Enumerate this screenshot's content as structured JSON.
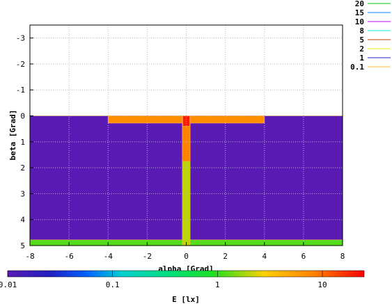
{
  "chart_data": {
    "type": "heatmap",
    "title": "",
    "xlabel": "alpha [Grad]",
    "ylabel": "beta [Grad]",
    "xlim": [
      -8,
      8
    ],
    "ylim": [
      -3.5,
      5
    ],
    "y_axis_inverted": true,
    "x_ticks": [
      "-8",
      "-6",
      "-4",
      "-2",
      "0",
      "2",
      "4",
      "6",
      "8"
    ],
    "y_ticks": [
      "-3",
      "-2",
      "-1",
      "0",
      "1",
      "2",
      "3",
      "4",
      "5"
    ],
    "grid": true,
    "legend_placement": "top-right outside",
    "contour_levels": [
      {
        "label": "20",
        "color": "#00c000"
      },
      {
        "label": "15",
        "color": "#0080ff"
      },
      {
        "label": "10",
        "color": "#c000ff"
      },
      {
        "label": "8",
        "color": "#00eeee"
      },
      {
        "label": "5",
        "color": "#c04000"
      },
      {
        "label": "2",
        "color": "#eeee00"
      },
      {
        "label": "1",
        "color": "#2020c0"
      },
      {
        "label": "0.1",
        "color": "#ffc020"
      }
    ],
    "colorbar": {
      "label": "E [lx]",
      "scale": "log",
      "range": [
        0.01,
        25
      ],
      "ticks": [
        "0.01",
        "0.1",
        "1",
        "10"
      ]
    },
    "regions": [
      {
        "name": "background",
        "x": [
          -8,
          8
        ],
        "y": [
          0,
          5
        ],
        "value": 0.01
      },
      {
        "name": "bottom-band",
        "x": [
          -8,
          8
        ],
        "y": [
          4.78,
          5
        ],
        "value": 1.2
      },
      {
        "name": "horizontal-bar",
        "x": [
          -4,
          4
        ],
        "y": [
          0,
          0.28
        ],
        "value": 7
      },
      {
        "name": "vertical-bar-upper",
        "x": [
          -0.2,
          0.2
        ],
        "y": [
          0,
          1.75
        ],
        "value": 8
      },
      {
        "name": "vertical-bar-lower",
        "x": [
          -0.2,
          0.2
        ],
        "y": [
          1.75,
          5
        ],
        "value": 2
      },
      {
        "name": "center-hotspot",
        "x": [
          -0.18,
          0.18
        ],
        "y": [
          0,
          0.4
        ],
        "value": 20
      }
    ]
  }
}
